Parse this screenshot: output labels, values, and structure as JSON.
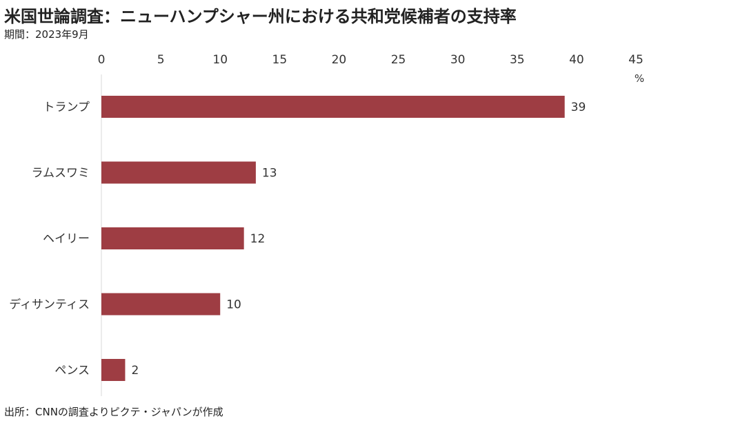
{
  "title": "米国世論調査：ニューハンプシャー州における共和党候補者の支持率",
  "subtitle": "期間：2023年9月",
  "source": "出所：CNNの調査よりピクテ・ジャパンが作成",
  "colors": {
    "bar": "#9e3d43",
    "axis": "#d9d9d9"
  },
  "chart_data": {
    "type": "bar",
    "orientation": "horizontal",
    "title": "米国世論調査：ニューハンプシャー州における共和党候補者の支持率",
    "unit": "%",
    "xlim": [
      0,
      45
    ],
    "ticks": [
      0,
      5,
      10,
      15,
      20,
      25,
      30,
      35,
      40,
      45
    ],
    "grid": false,
    "categories": [
      "トランプ",
      "ラムスワミ",
      "ヘイリー",
      "ディサンティス",
      "ペンス"
    ],
    "values": [
      39,
      13,
      12,
      10,
      2
    ]
  }
}
